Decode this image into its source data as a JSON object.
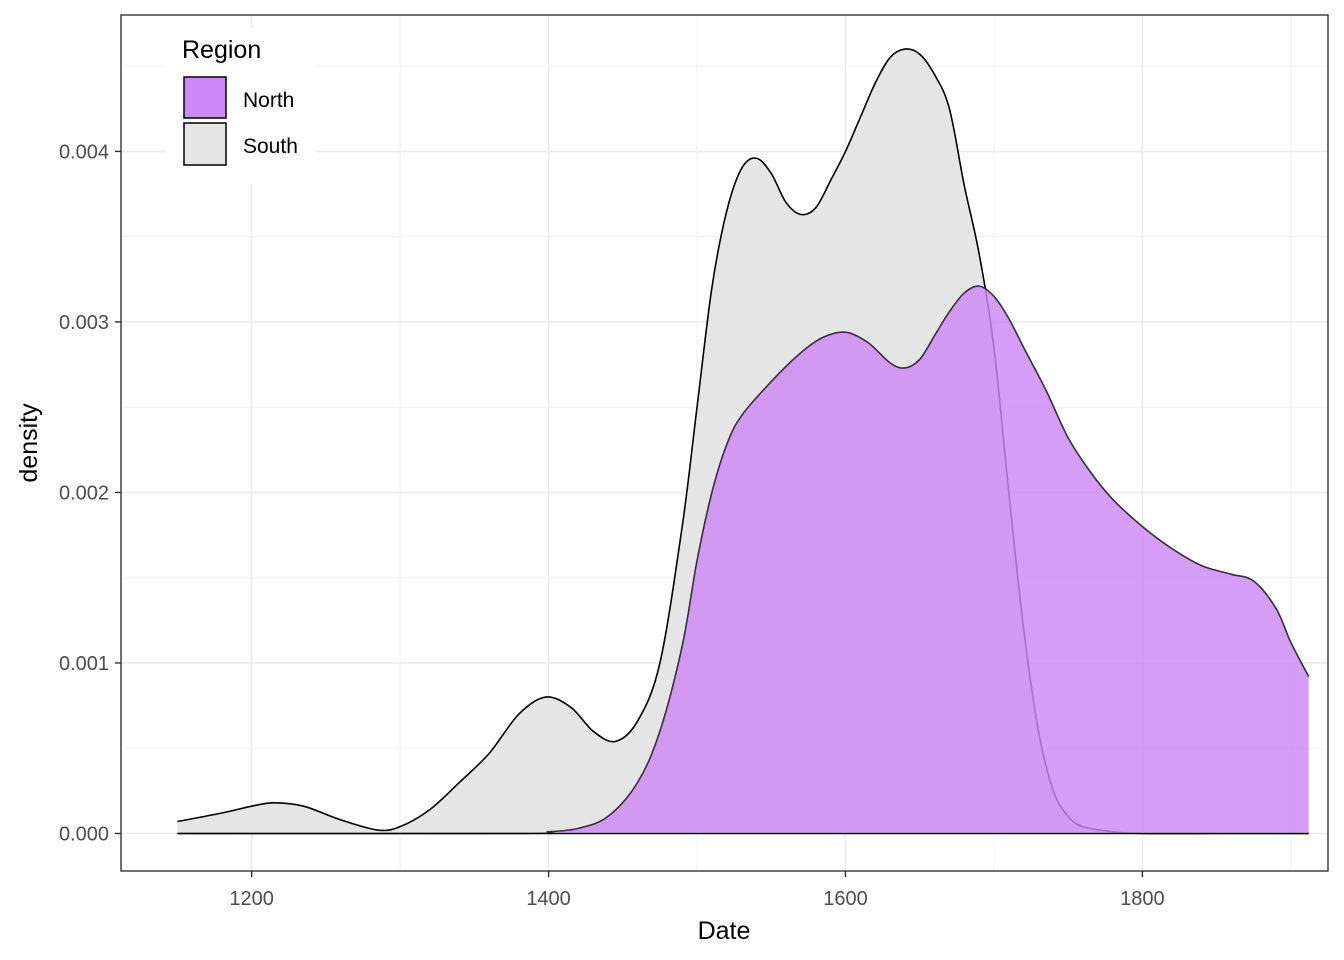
{
  "chart_data": {
    "type": "area",
    "xlabel": "Date",
    "ylabel": "density",
    "xlim": [
      1112,
      1925
    ],
    "ylim": [
      -0.00022,
      0.0048
    ],
    "x_ticks": [
      1200,
      1400,
      1600,
      1800
    ],
    "x_tick_labels": [
      "1200",
      "1400",
      "1600",
      "1800"
    ],
    "y_ticks": [
      0,
      0.001,
      0.002,
      0.003,
      0.004
    ],
    "y_tick_labels": [
      "0.000",
      "0.001",
      "0.002",
      "0.003",
      "0.004"
    ],
    "grid": true,
    "legend": {
      "title": "Region",
      "position": "top-left",
      "entries": [
        {
          "label": "North",
          "color": "#cc88f4"
        },
        {
          "label": "South",
          "color": "#e5e5e5"
        }
      ]
    },
    "series": [
      {
        "name": "South",
        "fill": "#e5e5e5",
        "points": [
          [
            1150,
            7e-05
          ],
          [
            1180,
            0.00012
          ],
          [
            1200,
            0.00016
          ],
          [
            1215,
            0.00018
          ],
          [
            1235,
            0.00016
          ],
          [
            1260,
            8e-05
          ],
          [
            1285,
            2e-05
          ],
          [
            1300,
            4e-05
          ],
          [
            1320,
            0.00014
          ],
          [
            1340,
            0.0003
          ],
          [
            1360,
            0.00047
          ],
          [
            1380,
            0.0007
          ],
          [
            1398,
            0.0008
          ],
          [
            1415,
            0.00074
          ],
          [
            1430,
            0.0006
          ],
          [
            1445,
            0.00054
          ],
          [
            1460,
            0.00066
          ],
          [
            1475,
            0.001
          ],
          [
            1490,
            0.0018
          ],
          [
            1500,
            0.0025
          ],
          [
            1510,
            0.0032
          ],
          [
            1520,
            0.00365
          ],
          [
            1530,
            0.0039
          ],
          [
            1540,
            0.00396
          ],
          [
            1550,
            0.00387
          ],
          [
            1560,
            0.0037
          ],
          [
            1570,
            0.00363
          ],
          [
            1580,
            0.00367
          ],
          [
            1590,
            0.00383
          ],
          [
            1600,
            0.004
          ],
          [
            1610,
            0.0042
          ],
          [
            1620,
            0.0044
          ],
          [
            1630,
            0.00455
          ],
          [
            1640,
            0.0046
          ],
          [
            1650,
            0.00457
          ],
          [
            1660,
            0.00445
          ],
          [
            1670,
            0.00425
          ],
          [
            1680,
            0.0038
          ],
          [
            1690,
            0.0034
          ],
          [
            1700,
            0.00285
          ],
          [
            1710,
            0.002
          ],
          [
            1720,
            0.0012
          ],
          [
            1730,
            0.0006
          ],
          [
            1740,
            0.00025
          ],
          [
            1750,
            0.0001
          ],
          [
            1760,
            4e-05
          ],
          [
            1780,
            1e-05
          ],
          [
            1800,
            0.0
          ],
          [
            1850,
            0.0
          ],
          [
            1912,
            0.0
          ]
        ]
      },
      {
        "name": "North",
        "fill": "#cc88f4",
        "points": [
          [
            1150,
            0.0
          ],
          [
            1380,
            0.0
          ],
          [
            1400,
            1e-05
          ],
          [
            1420,
            3e-05
          ],
          [
            1440,
            0.0001
          ],
          [
            1460,
            0.0003
          ],
          [
            1475,
            0.0006
          ],
          [
            1490,
            0.0011
          ],
          [
            1500,
            0.0016
          ],
          [
            1510,
            0.002
          ],
          [
            1520,
            0.00228
          ],
          [
            1530,
            0.00245
          ],
          [
            1550,
            0.00265
          ],
          [
            1570,
            0.00282
          ],
          [
            1585,
            0.00291
          ],
          [
            1600,
            0.00294
          ],
          [
            1615,
            0.00288
          ],
          [
            1630,
            0.00276
          ],
          [
            1640,
            0.00273
          ],
          [
            1650,
            0.00278
          ],
          [
            1660,
            0.00292
          ],
          [
            1670,
            0.00306
          ],
          [
            1680,
            0.00317
          ],
          [
            1690,
            0.00321
          ],
          [
            1700,
            0.00315
          ],
          [
            1710,
            0.00302
          ],
          [
            1720,
            0.00285
          ],
          [
            1735,
            0.0026
          ],
          [
            1750,
            0.00232
          ],
          [
            1765,
            0.00212
          ],
          [
            1780,
            0.00196
          ],
          [
            1800,
            0.0018
          ],
          [
            1820,
            0.00167
          ],
          [
            1840,
            0.00157
          ],
          [
            1860,
            0.00152
          ],
          [
            1875,
            0.00148
          ],
          [
            1890,
            0.00132
          ],
          [
            1900,
            0.00112
          ],
          [
            1912,
            0.00092
          ]
        ]
      }
    ]
  }
}
